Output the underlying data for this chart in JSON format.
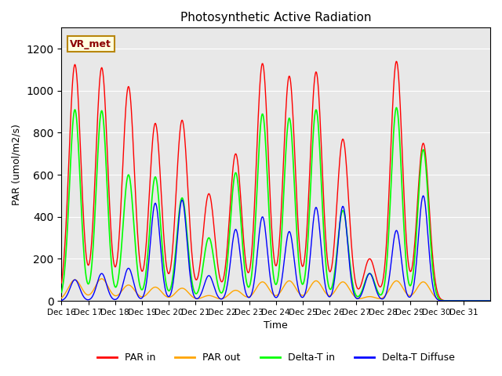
{
  "title": "Photosynthetic Active Radiation",
  "xlabel": "Time",
  "ylabel": "PAR (umol/m2/s)",
  "annotation": "VR_met",
  "ylim": [
    0,
    1300
  ],
  "yticks": [
    0,
    200,
    400,
    600,
    800,
    1000,
    1200
  ],
  "background_color": "#e8e8e8",
  "legend_labels": [
    "PAR in",
    "PAR out",
    "Delta-T in",
    "Delta-T Diffuse"
  ],
  "legend_colors": [
    "red",
    "orange",
    "lime",
    "blue"
  ],
  "x_tick_labels": [
    "Dec 16",
    "Dec 17",
    "Dec 18",
    "Dec 19",
    "Dec 20",
    "Dec 21",
    "Dec 22",
    "Dec 23",
    "Dec 24",
    "Dec 25",
    "Dec 26",
    "Dec 27",
    "Dec 28",
    "Dec 29",
    "Dec 30",
    "Dec 31"
  ],
  "n_days": 16,
  "day_peaks_par_in": [
    1125,
    1110,
    1020,
    845,
    860,
    510,
    700,
    1130,
    1070,
    1090,
    770,
    200,
    1140,
    750,
    0,
    0
  ],
  "day_peaks_par_out": [
    100,
    105,
    75,
    65,
    60,
    25,
    50,
    90,
    95,
    95,
    90,
    20,
    95,
    90,
    0,
    0
  ],
  "day_peaks_green": [
    910,
    905,
    600,
    590,
    490,
    300,
    610,
    890,
    870,
    910,
    430,
    130,
    920,
    720,
    0,
    0
  ],
  "day_peaks_blue": [
    100,
    130,
    155,
    465,
    480,
    120,
    340,
    400,
    330,
    445,
    450,
    130,
    335,
    500,
    0,
    0
  ]
}
